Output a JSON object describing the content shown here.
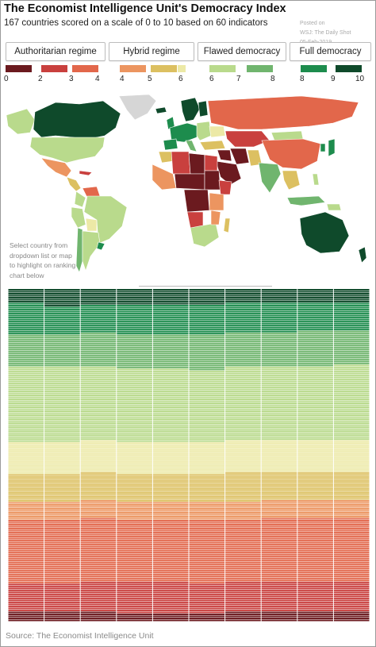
{
  "header": {
    "title": "The Economist Intelligence Unit's Democracy Index",
    "subtitle": "167 countries scored on a scale of 0 to 10 based on 60 indicators"
  },
  "watermark": {
    "line1": "Posted on",
    "line2": "WSJ: The Daily Shot",
    "line3": "05-Feb-2019"
  },
  "regime_buttons": [
    "Authoritarian regime",
    "Hybrid regime",
    "Flawed democracy",
    "Full democracy"
  ],
  "legend": {
    "ticks": [
      "0",
      "2",
      "3",
      "4",
      "4",
      "5",
      "6",
      "6",
      "7",
      "8",
      "8",
      "9",
      "10"
    ],
    "colors": [
      "#6b1a1f",
      "#c9403e",
      "#e2674b",
      "#ec9560",
      "#dcc061",
      "#ece9a6",
      "#b9da8c",
      "#70b56e",
      "#1d8c4d",
      "#0f4a2b"
    ]
  },
  "map": {
    "hint_lines": [
      "Select country from",
      "dropdown list or map",
      "to highlight on ranking",
      "chart below"
    ]
  },
  "chart_data": {
    "type": "heatmap",
    "title": "The Economist Intelligence Unit's Democracy Index",
    "subtitle": "167 countries scored on a scale of 0 to 10 based on 60 indicators",
    "xlabel": "",
    "ylabel": "",
    "ylim": [
      0,
      10
    ],
    "columns": 10,
    "countries_per_column": 167,
    "regimes": [
      {
        "name": "Authoritarian regime",
        "range": [
          0,
          4
        ]
      },
      {
        "name": "Hybrid regime",
        "range": [
          4,
          6
        ]
      },
      {
        "name": "Flawed democracy",
        "range": [
          6,
          8
        ]
      },
      {
        "name": "Full democracy",
        "range": [
          8,
          10
        ]
      }
    ],
    "color_bands": [
      {
        "range": [
          0,
          2
        ],
        "color": "#6b1a1f"
      },
      {
        "range": [
          2,
          3
        ],
        "color": "#c9403e"
      },
      {
        "range": [
          3,
          4
        ],
        "color": "#e2674b"
      },
      {
        "range": [
          4,
          4.5
        ],
        "color": "#ec9560"
      },
      {
        "range": [
          4.5,
          5
        ],
        "color": "#dcc061"
      },
      {
        "range": [
          5,
          6
        ],
        "color": "#ece9a6"
      },
      {
        "range": [
          6,
          7
        ],
        "color": "#b9da8c"
      },
      {
        "range": [
          7,
          8
        ],
        "color": "#70b56e"
      },
      {
        "range": [
          8,
          9
        ],
        "color": "#1d8c4d"
      },
      {
        "range": [
          9,
          10
        ],
        "color": "#0f4a2b"
      }
    ],
    "band_counts_by_column": [
      [
        5,
        14,
        32,
        9,
        14,
        16,
        38,
        16,
        16,
        7
      ],
      [
        5,
        14,
        32,
        9,
        14,
        16,
        38,
        16,
        14,
        9
      ],
      [
        5,
        15,
        32,
        9,
        14,
        16,
        37,
        17,
        14,
        8
      ],
      [
        4,
        16,
        31,
        9,
        14,
        16,
        37,
        17,
        15,
        8
      ],
      [
        4,
        16,
        31,
        9,
        14,
        16,
        37,
        17,
        15,
        8
      ],
      [
        4,
        15,
        32,
        9,
        14,
        16,
        36,
        18,
        15,
        8
      ],
      [
        5,
        15,
        31,
        9,
        15,
        16,
        37,
        17,
        15,
        7
      ],
      [
        5,
        15,
        32,
        9,
        14,
        16,
        37,
        17,
        15,
        7
      ],
      [
        5,
        15,
        32,
        9,
        14,
        16,
        37,
        18,
        14,
        7
      ],
      [
        5,
        15,
        32,
        9,
        14,
        16,
        38,
        17,
        14,
        7
      ]
    ]
  },
  "footer": {
    "source": "Source: The Economist Intelligence Unit"
  }
}
